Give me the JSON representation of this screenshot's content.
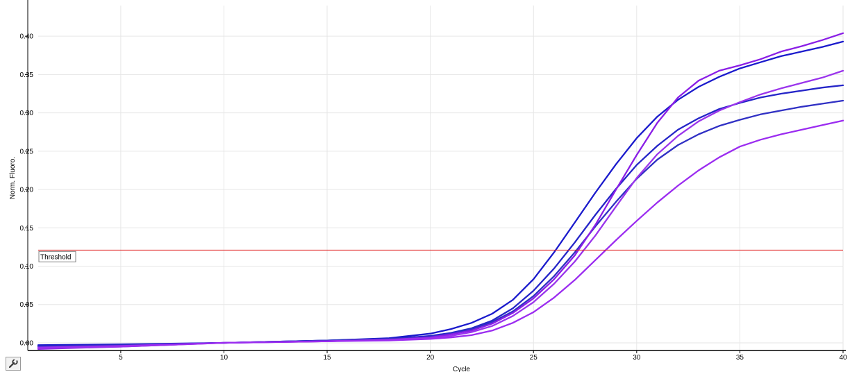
{
  "chart_data": {
    "type": "line",
    "xlabel": "Cycle",
    "ylabel": "Norm. Fluoro.",
    "xlim": [
      1,
      40
    ],
    "ylim": [
      -0.01,
      0.44
    ],
    "xticks": [
      5,
      10,
      15,
      20,
      25,
      30,
      35,
      40
    ],
    "yticks": [
      0.0,
      0.05,
      0.1,
      0.15,
      0.2,
      0.25,
      0.3,
      0.35,
      0.4
    ],
    "grid": true,
    "threshold": {
      "label": "Threshold",
      "value": 0.121,
      "color": "#e02020"
    },
    "x": [
      1,
      5,
      10,
      15,
      18,
      20,
      21,
      22,
      23,
      24,
      25,
      26,
      27,
      28,
      29,
      30,
      31,
      32,
      33,
      34,
      35,
      36,
      37,
      38,
      39,
      40
    ],
    "series": [
      {
        "color": "#1a1acc",
        "values": [
          -0.003,
          -0.002,
          0.0,
          0.003,
          0.006,
          0.012,
          0.018,
          0.026,
          0.038,
          0.056,
          0.083,
          0.118,
          0.157,
          0.196,
          0.233,
          0.267,
          0.295,
          0.317,
          0.334,
          0.347,
          0.358,
          0.366,
          0.374,
          0.38,
          0.386,
          0.393
        ]
      },
      {
        "color": "#2424c8",
        "values": [
          -0.004,
          -0.003,
          0.0,
          0.003,
          0.005,
          0.009,
          0.013,
          0.019,
          0.029,
          0.045,
          0.068,
          0.097,
          0.131,
          0.167,
          0.201,
          0.232,
          0.257,
          0.278,
          0.293,
          0.305,
          0.313,
          0.32,
          0.325,
          0.329,
          0.333,
          0.336
        ]
      },
      {
        "color": "#3030c4",
        "values": [
          -0.005,
          -0.003,
          0.0,
          0.003,
          0.005,
          0.008,
          0.012,
          0.018,
          0.027,
          0.041,
          0.061,
          0.087,
          0.118,
          0.152,
          0.184,
          0.214,
          0.239,
          0.258,
          0.272,
          0.283,
          0.291,
          0.298,
          0.303,
          0.308,
          0.312,
          0.316
        ]
      },
      {
        "color": "#8a1ee6",
        "values": [
          -0.008,
          -0.005,
          0.0,
          0.002,
          0.004,
          0.007,
          0.011,
          0.016,
          0.025,
          0.039,
          0.058,
          0.083,
          0.114,
          0.154,
          0.2,
          0.245,
          0.287,
          0.32,
          0.342,
          0.355,
          0.362,
          0.37,
          0.38,
          0.387,
          0.395,
          0.404
        ]
      },
      {
        "color": "#9a34ec",
        "values": [
          -0.007,
          -0.005,
          0.0,
          0.002,
          0.004,
          0.006,
          0.009,
          0.014,
          0.022,
          0.035,
          0.053,
          0.077,
          0.106,
          0.14,
          0.178,
          0.215,
          0.246,
          0.27,
          0.289,
          0.303,
          0.314,
          0.324,
          0.332,
          0.339,
          0.346,
          0.355
        ]
      },
      {
        "color": "#9b2cf0",
        "values": [
          -0.006,
          -0.004,
          0.0,
          0.002,
          0.003,
          0.005,
          0.007,
          0.01,
          0.016,
          0.026,
          0.04,
          0.059,
          0.082,
          0.108,
          0.134,
          0.159,
          0.183,
          0.205,
          0.225,
          0.242,
          0.256,
          0.265,
          0.272,
          0.278,
          0.284,
          0.29
        ]
      }
    ]
  }
}
